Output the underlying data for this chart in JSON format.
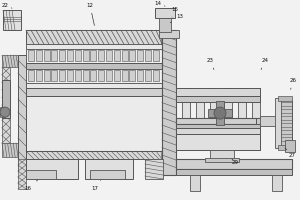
{
  "lc": "#555555",
  "lw": 0.6,
  "bg": "#f2f2f2"
}
